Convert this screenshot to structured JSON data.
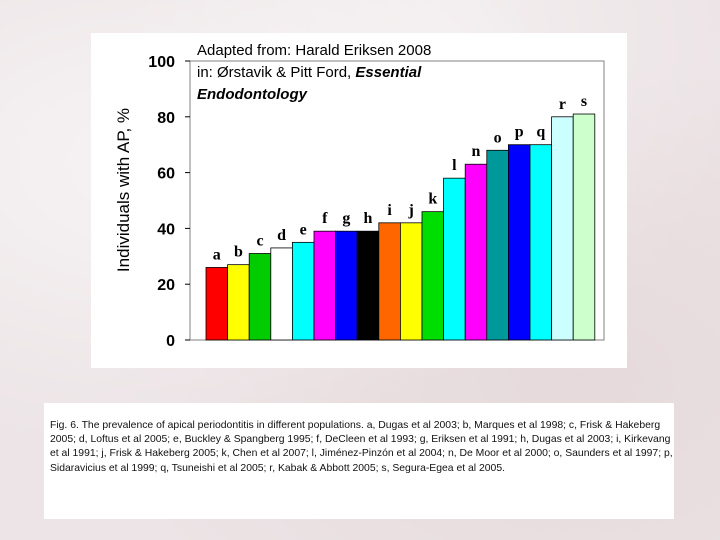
{
  "chart_data": {
    "type": "bar",
    "ylabel": "Individuals with AP, %",
    "ylim": [
      0,
      100
    ],
    "yticks": [
      0,
      20,
      40,
      60,
      80,
      100
    ],
    "grid": false,
    "legend": "none",
    "annotation": {
      "line1": "Adapted from: Harald Eriksen 2008",
      "line2_prefix": "in: Ørstavik & Pitt Ford, ",
      "line2_italic": "Essential",
      "line3_italic": "Endodontology"
    },
    "categories": [
      "a",
      "b",
      "c",
      "d",
      "e",
      "f",
      "g",
      "h",
      "i",
      "j",
      "k",
      "l",
      "n",
      "o",
      "p",
      "q",
      "r",
      "s"
    ],
    "values": [
      26,
      27,
      31,
      33,
      35,
      39,
      39,
      39,
      42,
      42,
      46,
      58,
      63,
      68,
      70,
      70,
      80,
      81
    ],
    "colors": [
      "#ff0000",
      "#ffff00",
      "#00cc00",
      "#ffffff",
      "#00ffff",
      "#ff00ff",
      "#0000ff",
      "#000000",
      "#ff6600",
      "#ffff00",
      "#00dd00",
      "#00ffff",
      "#ff00ff",
      "#009999",
      "#0000ff",
      "#00ffff",
      "#ccffff",
      "#ccffcc"
    ]
  },
  "caption": "Fig. 6. The prevalence of apical periodontitis in different populations. a, Dugas et al 2003; b, Marques et al 1998; c, Frisk & Hakeberg 2005; d, Loftus et al 2005; e, Buckley & Spangberg 1995; f, DeCleen et al 1993; g, Eriksen et al 1991; h, Dugas et al 2003; i, Kirkevang et al 1991; j, Frisk & Hakeberg 2005; k, Chen et al 2007; l, Jiménez-Pinzón et al 2004; n, De Moor et al 2000; o, Saunders et al 1997; p, Sidaravicius et al 1999; q, Tsuneishi et al 2005; r, Kabak & Abbott 2005; s, Segura-Egea et al 2005."
}
